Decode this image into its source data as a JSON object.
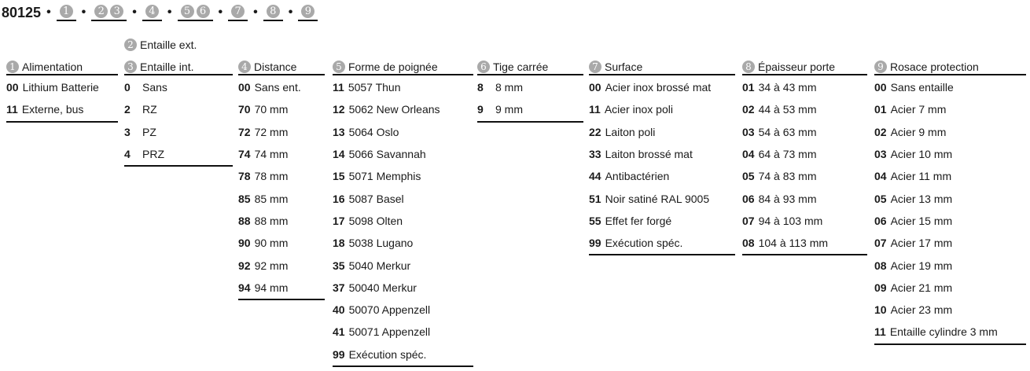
{
  "title": {
    "code": "80125",
    "separator": "•",
    "slots": [
      [
        "1"
      ],
      [
        "2",
        "3"
      ],
      [
        "4"
      ],
      [
        "5",
        "6"
      ],
      [
        "7"
      ],
      [
        "8"
      ],
      [
        "9"
      ]
    ]
  },
  "columns": [
    {
      "headers": [
        {
          "num": "1",
          "label": "Alimentation"
        }
      ],
      "items": [
        {
          "code": "00",
          "label": "Lithium Batterie"
        },
        {
          "code": "11",
          "label": "Externe, bus"
        }
      ]
    },
    {
      "headers": [
        {
          "num": "2",
          "label": "Entaille ext."
        },
        {
          "num": "3",
          "label": "Entaille int."
        }
      ],
      "items": [
        {
          "code": "0",
          "label": "Sans"
        },
        {
          "code": "2",
          "label": "RZ"
        },
        {
          "code": "3",
          "label": "PZ"
        },
        {
          "code": "4",
          "label": "PRZ"
        }
      ]
    },
    {
      "headers": [
        {
          "num": "4",
          "label": "Distance"
        }
      ],
      "items": [
        {
          "code": "00",
          "label": "Sans ent."
        },
        {
          "code": "70",
          "label": "70 mm"
        },
        {
          "code": "72",
          "label": "72 mm"
        },
        {
          "code": "74",
          "label": "74 mm"
        },
        {
          "code": "78",
          "label": "78 mm"
        },
        {
          "code": "85",
          "label": "85 mm"
        },
        {
          "code": "88",
          "label": "88 mm"
        },
        {
          "code": "90",
          "label": "90 mm"
        },
        {
          "code": "92",
          "label": "92 mm"
        },
        {
          "code": "94",
          "label": "94 mm"
        }
      ]
    },
    {
      "headers": [
        {
          "num": "5",
          "label": "Forme de poignée"
        }
      ],
      "items": [
        {
          "code": "11",
          "label": "5057 Thun"
        },
        {
          "code": "12",
          "label": "5062 New Orleans"
        },
        {
          "code": "13",
          "label": "5064 Oslo"
        },
        {
          "code": "14",
          "label": "5066 Savannah"
        },
        {
          "code": "15",
          "label": "5071 Memphis"
        },
        {
          "code": "16",
          "label": "5087 Basel"
        },
        {
          "code": "17",
          "label": "5098 Olten"
        },
        {
          "code": "18",
          "label": "5038 Lugano"
        },
        {
          "code": "35",
          "label": "5040 Merkur"
        },
        {
          "code": "37",
          "label": "50040 Merkur"
        },
        {
          "code": "40",
          "label": "50070 Appenzell"
        },
        {
          "code": "41",
          "label": "50071 Appenzell"
        },
        {
          "code": "99",
          "label": "Exécution spéc."
        }
      ]
    },
    {
      "headers": [
        {
          "num": "6",
          "label": "Tige carrée"
        }
      ],
      "items": [
        {
          "code": "8",
          "label": "8 mm"
        },
        {
          "code": "9",
          "label": "9 mm"
        }
      ]
    },
    {
      "headers": [
        {
          "num": "7",
          "label": "Surface"
        }
      ],
      "items": [
        {
          "code": "00",
          "label": "Acier inox brossé mat"
        },
        {
          "code": "11",
          "label": "Acier inox poli"
        },
        {
          "code": "22",
          "label": "Laiton poli"
        },
        {
          "code": "33",
          "label": "Laiton brossé mat"
        },
        {
          "code": "44",
          "label": "Antibactérien"
        },
        {
          "code": "51",
          "label": "Noir satiné RAL 9005"
        },
        {
          "code": "55",
          "label": "Effet fer forgé"
        },
        {
          "code": "99",
          "label": "Exécution spéc."
        }
      ]
    },
    {
      "headers": [
        {
          "num": "8",
          "label": "Épaisseur porte"
        }
      ],
      "items": [
        {
          "code": "01",
          "label": "34 à 43 mm"
        },
        {
          "code": "02",
          "label": "44 à 53 mm"
        },
        {
          "code": "03",
          "label": "54 à 63 mm"
        },
        {
          "code": "04",
          "label": "64 à 73 mm"
        },
        {
          "code": "05",
          "label": "74 à 83 mm"
        },
        {
          "code": "06",
          "label": "84 à 93 mm"
        },
        {
          "code": "07",
          "label": "94 à 103 mm"
        },
        {
          "code": "08",
          "label": "104 à 113 mm"
        }
      ]
    },
    {
      "headers": [
        {
          "num": "9",
          "label": "Rosace protection"
        }
      ],
      "items": [
        {
          "code": "00",
          "label": "Sans entaille"
        },
        {
          "code": "01",
          "label": "Acier 7 mm"
        },
        {
          "code": "02",
          "label": "Acier 9 mm"
        },
        {
          "code": "03",
          "label": "Acier 10 mm"
        },
        {
          "code": "04",
          "label": "Acier 11 mm"
        },
        {
          "code": "05",
          "label": "Acier 13 mm"
        },
        {
          "code": "06",
          "label": "Acier 15 mm"
        },
        {
          "code": "07",
          "label": "Acier 17 mm"
        },
        {
          "code": "08",
          "label": "Acier 19 mm"
        },
        {
          "code": "09",
          "label": "Acier 21 mm"
        },
        {
          "code": "10",
          "label": "Acier 23 mm"
        },
        {
          "code": "11",
          "label": "Entaille cylindre 3 mm"
        }
      ]
    }
  ],
  "colors": {
    "circle": "#a9a9a9",
    "text": "#1a1a1a",
    "rule": "#111111"
  }
}
